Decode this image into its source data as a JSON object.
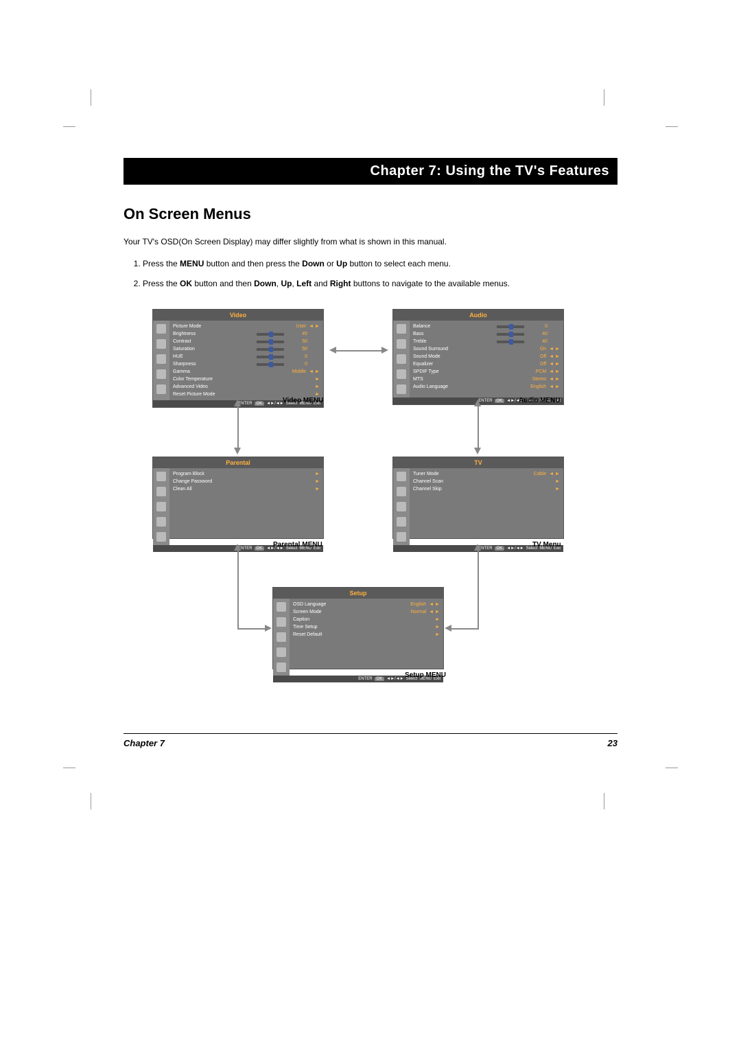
{
  "chapter_bar": "Chapter 7: Using the TV's Features",
  "section_title": "On Screen Menus",
  "intro_text": "Your TV's OSD(On Screen Display) may differ slightly from what is shown in this manual.",
  "step1_a": "Press the ",
  "step1_b": "MENU",
  "step1_c": " button and then press the ",
  "step1_d": "Down",
  "step1_e": " or ",
  "step1_f": "Up",
  "step1_g": " button to select each menu.",
  "step2_a": "Press the ",
  "step2_b": "OK",
  "step2_c": " button and then ",
  "step2_d": "Down",
  "step2_e": ", ",
  "step2_f": "Up",
  "step2_g": ", ",
  "step2_h": "Left",
  "step2_i": " and ",
  "step2_j": "Right",
  "step2_k": " buttons to navigate to the available menus.",
  "video": {
    "title": "Video",
    "caption": "Video MENU",
    "rows": [
      {
        "label": "Picture Mode",
        "val": "User",
        "arrows": "◄ ►"
      },
      {
        "label": "Brightness",
        "val": "45",
        "slider": true
      },
      {
        "label": "Contrast",
        "val": "50",
        "slider": true
      },
      {
        "label": "Saturation",
        "val": "50",
        "slider": true
      },
      {
        "label": "HUE",
        "val": "0",
        "slider": true
      },
      {
        "label": "Sharpness",
        "val": "0",
        "slider": true
      },
      {
        "label": "Gamma",
        "val": "Middle",
        "arrows": "◄ ►"
      },
      {
        "label": "Color Temperature",
        "val": "",
        "arrows": "►"
      },
      {
        "label": "Advanced Video",
        "val": "",
        "arrows": "►"
      },
      {
        "label": "Reset Picture Mode",
        "val": "",
        "arrows": "►"
      }
    ]
  },
  "audio": {
    "title": "Audio",
    "caption": "Audio MENU",
    "rows": [
      {
        "label": "Balance",
        "val": "0",
        "slider": true
      },
      {
        "label": "Bass",
        "val": "40",
        "slider": true
      },
      {
        "label": "Treble",
        "val": "40",
        "slider": true
      },
      {
        "label": "Sound Surround",
        "val": "On",
        "arrows": "◄ ►"
      },
      {
        "label": "Sound Mode",
        "val": "Off",
        "arrows": "◄ ►"
      },
      {
        "label": "Equalizer",
        "val": "Off",
        "arrows": "◄ ►"
      },
      {
        "label": "SPDIF Type",
        "val": "PCM",
        "arrows": "◄ ►"
      },
      {
        "label": "MTS",
        "val": "Stereo",
        "arrows": "◄ ►"
      },
      {
        "label": "Audio Language",
        "val": "English",
        "arrows": "◄ ►"
      }
    ]
  },
  "parental": {
    "title": "Parental",
    "caption": "Parental MENU",
    "rows": [
      {
        "label": "Program Block",
        "val": "",
        "arrows": "►"
      },
      {
        "label": "Change Password",
        "val": "",
        "arrows": "►"
      },
      {
        "label": "Clean All",
        "val": "",
        "arrows": "►"
      }
    ]
  },
  "tv": {
    "title": "TV",
    "caption": "TV Menu",
    "rows": [
      {
        "label": "Tuner Mode",
        "val": "Cable",
        "arrows": "◄ ►"
      },
      {
        "label": "Channel Scan",
        "val": "",
        "arrows": "►"
      },
      {
        "label": "Channel Skip",
        "val": "",
        "arrows": "►"
      }
    ]
  },
  "setup": {
    "title": "Setup",
    "caption": "Setup MENU",
    "rows": [
      {
        "label": "OSD Language",
        "val": "English",
        "arrows": "◄ ►"
      },
      {
        "label": "Screen Mode",
        "val": "Normal",
        "arrows": "◄ ►"
      },
      {
        "label": "Caption",
        "val": "",
        "arrows": "►"
      },
      {
        "label": "Time Setup",
        "val": "",
        "arrows": "►"
      },
      {
        "label": "Reset Default",
        "val": "",
        "arrows": "►"
      }
    ]
  },
  "footer_keys": {
    "enter": "ENTER",
    "ok": "OK",
    "select": "Select",
    "menu": "MENU",
    "exit": "Exit",
    "nav": "◄►/◄►"
  },
  "footer_chapter": "Chapter 7",
  "footer_page": "23",
  "colors": {
    "card_bg": "#7a7a7a",
    "title_bg": "#5a5a5a",
    "accent": "#ffb040",
    "arrow": "#888888",
    "text": "#000000"
  }
}
